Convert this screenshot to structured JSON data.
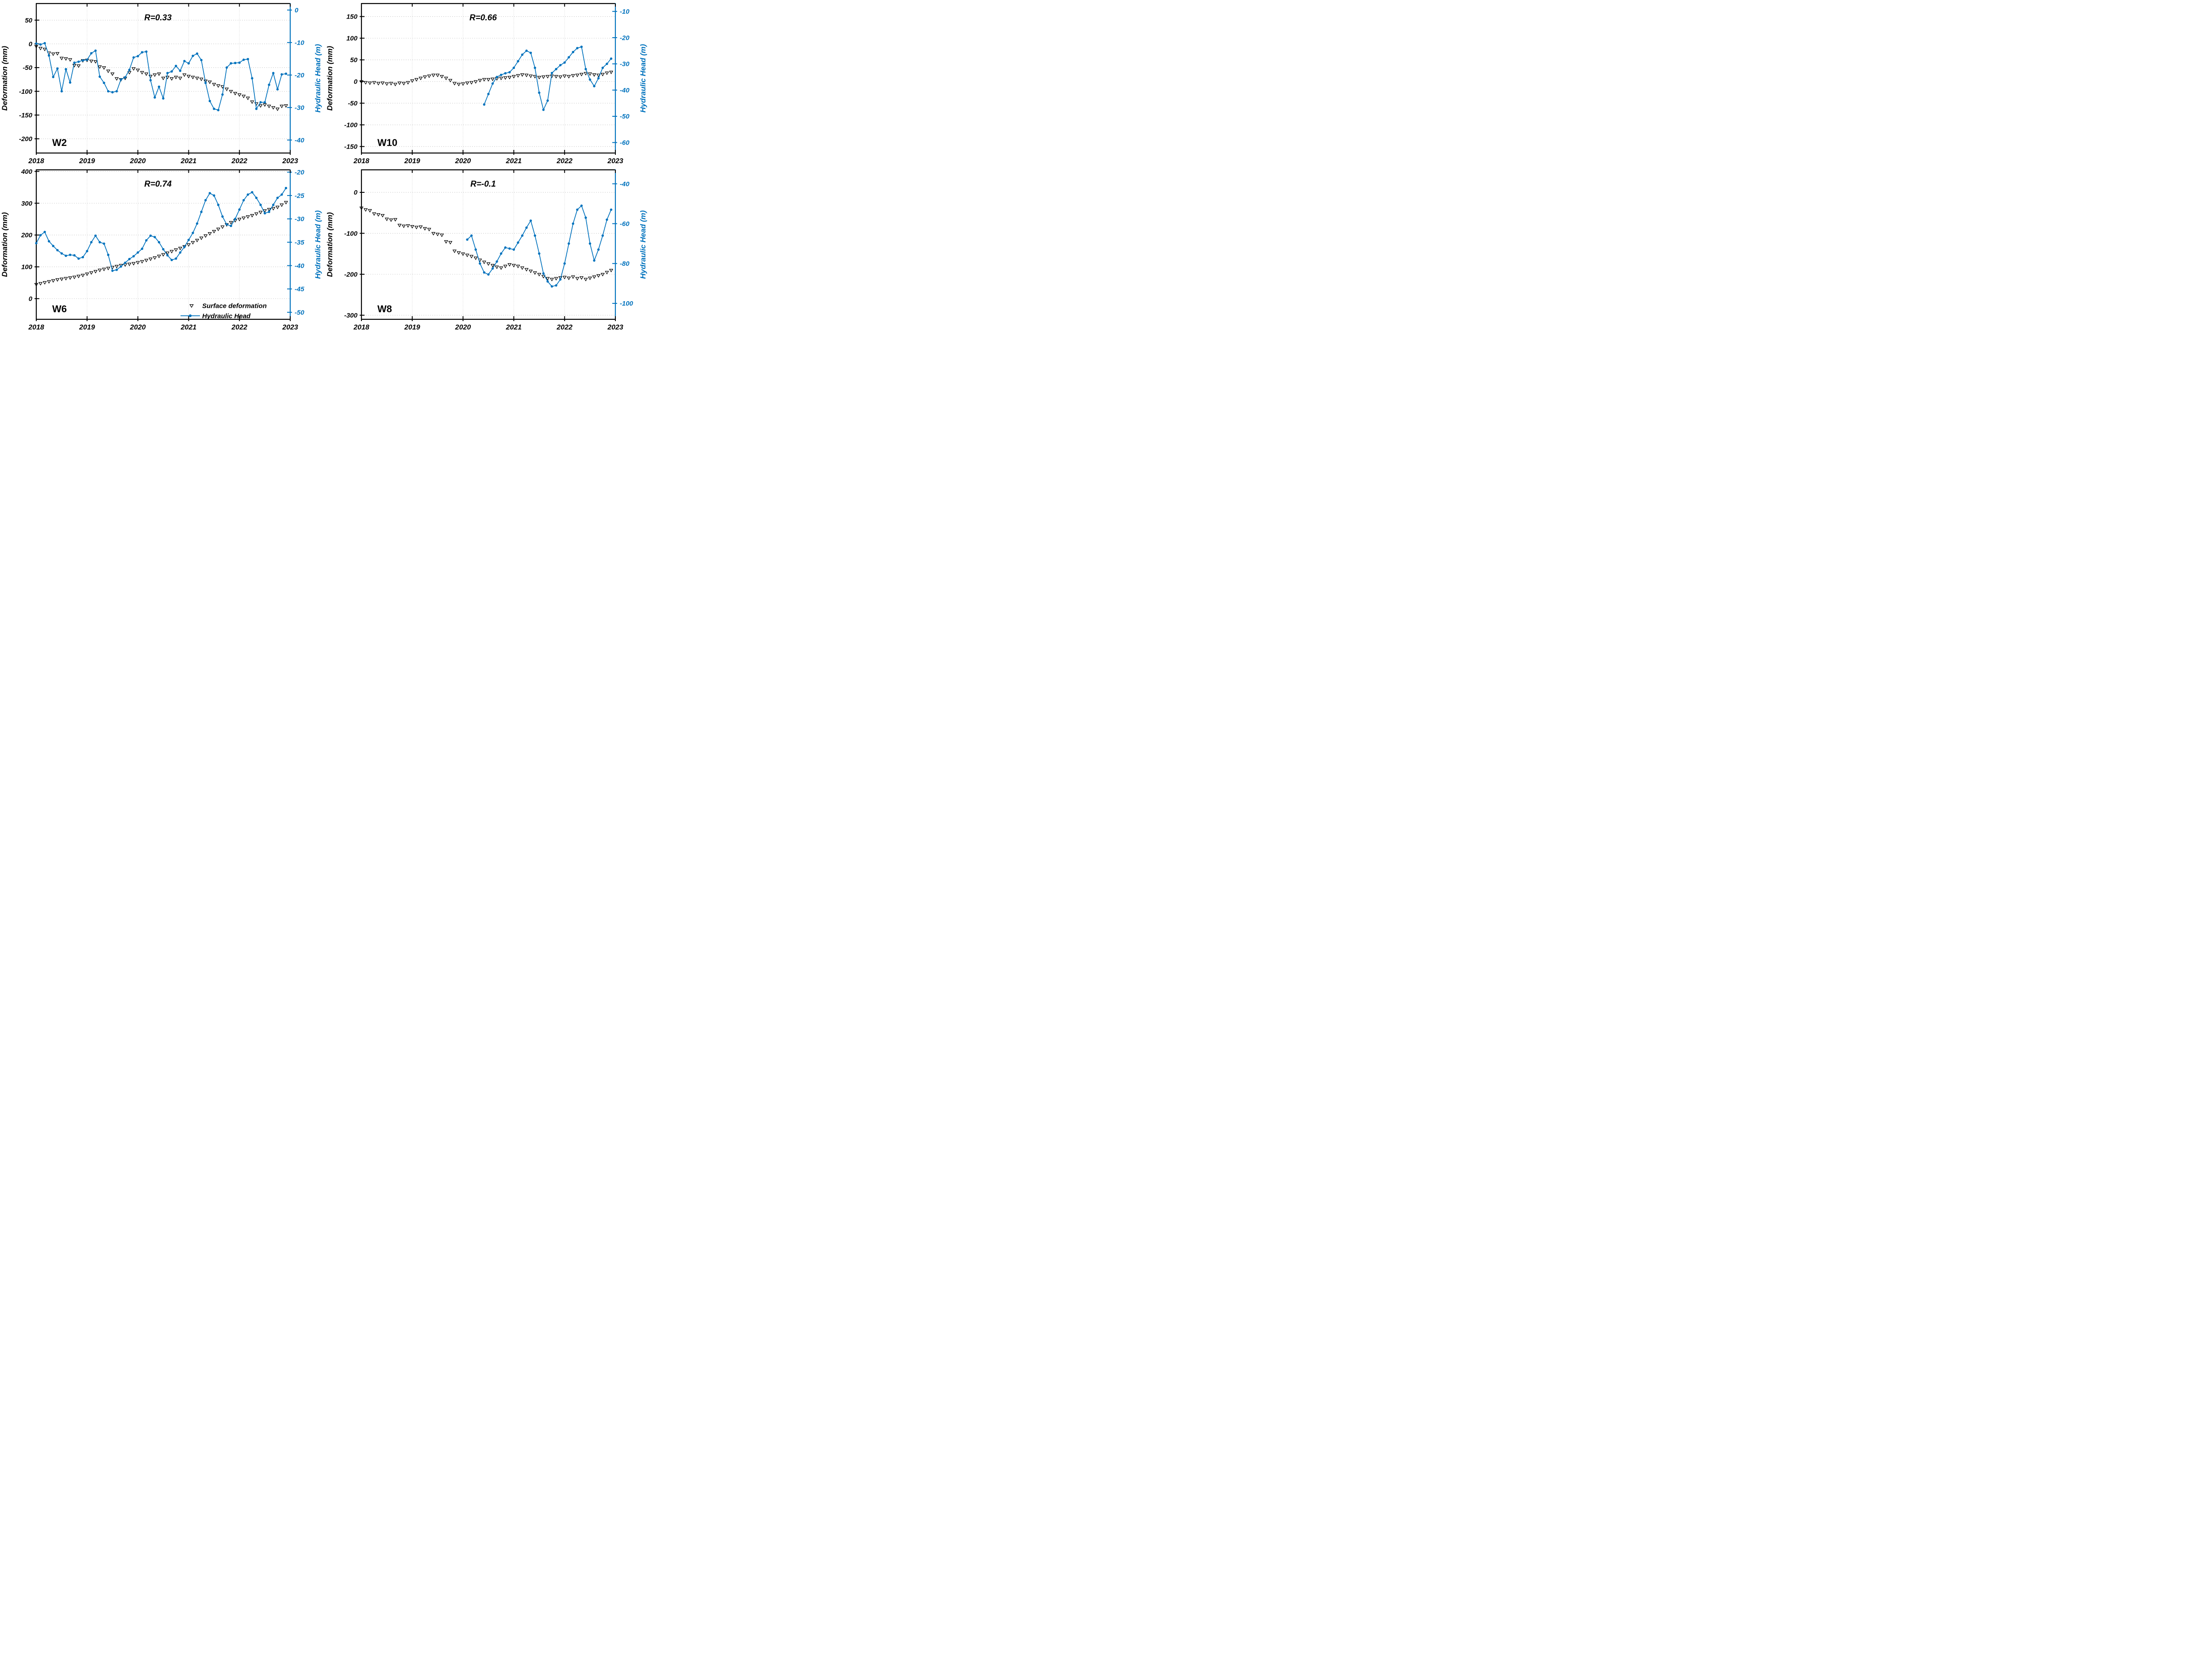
{
  "figure": {
    "background": "#ffffff",
    "accent_blue": "#0072BD",
    "axis_black": "#000000",
    "grid_color": "#cfcfcf",
    "x_axis": {
      "ticks": [
        2018,
        2019,
        2020,
        2021,
        2022,
        2023
      ],
      "xlim": [
        2018,
        2023
      ]
    },
    "legend": {
      "host_panel": "W6",
      "items": [
        {
          "label": "Surface deformation",
          "marker": "open-triangle-down",
          "color": "#000000"
        },
        {
          "label": "Hydraulic Head",
          "marker": "line-filled-circle",
          "color": "#0072BD"
        }
      ]
    }
  },
  "chart_data": [
    {
      "id": "W2",
      "type": "line",
      "well_label": "W2",
      "r_label": "R=0.33",
      "left_axis": {
        "label": "Deformation (mm)",
        "ylim": [
          -230,
          85
        ],
        "ticks": [
          50,
          0,
          -50,
          -100,
          -150,
          -200
        ],
        "color": "#000000"
      },
      "right_axis": {
        "label": "Hydraulic Head (m)",
        "ylim": [
          -44,
          2
        ],
        "ticks": [
          0,
          -10,
          -20,
          -30,
          -40
        ],
        "color": "#0072BD"
      },
      "series": [
        {
          "name": "Surface deformation",
          "axis": "left",
          "marker": "open-triangle-down",
          "line": false,
          "color": "#000000",
          "x_start": 2018.0,
          "x_step": 0.0833333,
          "values": [
            -5,
            -9,
            -11,
            -19,
            -21,
            -20,
            -30,
            -31,
            -33,
            -45,
            -46,
            -35,
            -34,
            -36,
            -37,
            -48,
            -50,
            -57,
            -63,
            -73,
            -75,
            -72,
            -60,
            -52,
            -55,
            -60,
            -63,
            -68,
            -65,
            -63,
            -72,
            -70,
            -73,
            -70,
            -72,
            -65,
            -68,
            -70,
            -72,
            -74,
            -78,
            -80,
            -85,
            -88,
            -90,
            -95,
            -100,
            -104,
            -107,
            -110,
            -114,
            -122,
            -126,
            -130,
            -128,
            -131,
            -134,
            -137,
            -131,
            -130
          ]
        },
        {
          "name": "Hydraulic Head",
          "axis": "right",
          "marker": "filled-circle",
          "line": true,
          "color": "#0072BD",
          "x_start": 2018.0,
          "x_step": 0.0833333,
          "values": [
            -10.3,
            -10.6,
            -10.2,
            -14.0,
            -20.6,
            -18.0,
            -25.0,
            -18.2,
            -22.3,
            -16.2,
            -15.9,
            -15.5,
            -15.3,
            -13.3,
            -12.5,
            -20.5,
            -22.4,
            -25.0,
            -25.3,
            -25.0,
            -21.4,
            -20.7,
            -18.4,
            -14.6,
            -14.2,
            -13.0,
            -12.8,
            -21.6,
            -26.9,
            -23.6,
            -27.2,
            -19.4,
            -18.9,
            -17.2,
            -18.7,
            -15.7,
            -16.4,
            -14.1,
            -13.4,
            -15.4,
            -22.4,
            -28.0,
            -30.4,
            -30.8,
            -26.0,
            -17.7,
            -16.4,
            -16.3,
            -16.2,
            -15.3,
            -15.1,
            -21.0,
            -30.4,
            -28.4,
            -28.4,
            -23.0,
            -19.4,
            -24.4,
            -19.8,
            -19.6
          ]
        }
      ]
    },
    {
      "id": "W10",
      "type": "line",
      "well_label": "W10",
      "r_label": "R=0.66",
      "left_axis": {
        "label": "Deformation (mm)",
        "ylim": [
          -165,
          180
        ],
        "ticks": [
          150,
          100,
          50,
          0,
          -50,
          -100,
          -150
        ],
        "color": "#000000"
      },
      "right_axis": {
        "label": "Hydraulic Head (m)",
        "ylim": [
          -64,
          -7
        ],
        "ticks": [
          -10,
          -20,
          -30,
          -40,
          -50,
          -60
        ],
        "color": "#0072BD"
      },
      "series": [
        {
          "name": "Surface deformation",
          "axis": "left",
          "marker": "open-triangle-down",
          "line": false,
          "color": "#000000",
          "x_start": 2018.0,
          "x_step": 0.0833333,
          "values": [
            0,
            -2,
            -3,
            -2,
            -4,
            -3,
            -5,
            -4,
            -6,
            -3,
            -4,
            -2,
            2,
            5,
            8,
            11,
            13,
            15,
            15,
            12,
            8,
            3,
            -4,
            -6,
            -5,
            -3,
            -2,
            0,
            3,
            5,
            5,
            6,
            7,
            8,
            9,
            10,
            12,
            14,
            16,
            15,
            13,
            12,
            10,
            11,
            12,
            13,
            12,
            11,
            13,
            12,
            14,
            15,
            17,
            19,
            18,
            16,
            15,
            17,
            20,
            22
          ]
        },
        {
          "name": "Hydraulic Head",
          "axis": "right",
          "marker": "filled-circle",
          "line": true,
          "color": "#0072BD",
          "x_start": 2020.4167,
          "x_step": 0.0833333,
          "values": [
            -45.5,
            -41.5,
            -37.5,
            -35.0,
            -34.2,
            -33.6,
            -33.2,
            -31.5,
            -29.0,
            -26.5,
            -25.0,
            -25.8,
            -31.5,
            -41.0,
            -47.5,
            -44.0,
            -33.5,
            -32.0,
            -30.5,
            -29.5,
            -27.5,
            -25.5,
            -24.0,
            -23.5,
            -32.0,
            -36.0,
            -38.5,
            -35.5,
            -31.5,
            -30.0,
            -28.0
          ]
        }
      ]
    },
    {
      "id": "W6",
      "type": "line",
      "well_label": "W6",
      "r_label": "R=0.74",
      "left_axis": {
        "label": "Deformation (mm)",
        "ylim": [
          -65,
          405
        ],
        "ticks": [
          400,
          300,
          200,
          100,
          0
        ],
        "color": "#000000"
      },
      "right_axis": {
        "label": "Hydraulic Head (m)",
        "ylim": [
          -51.5,
          -19.5
        ],
        "ticks": [
          -20,
          -25,
          -30,
          -35,
          -40,
          -45,
          -50
        ],
        "color": "#0072BD"
      },
      "series": [
        {
          "name": "Surface deformation",
          "axis": "left",
          "marker": "open-triangle-down",
          "line": false,
          "color": "#000000",
          "x_start": 2018.0,
          "x_step": 0.0833333,
          "values": [
            45,
            48,
            51,
            54,
            57,
            60,
            62,
            64,
            66,
            68,
            71,
            74,
            78,
            82,
            86,
            90,
            93,
            96,
            99,
            102,
            105,
            107,
            109,
            111,
            114,
            117,
            121,
            125,
            129,
            134,
            139,
            144,
            149,
            154,
            159,
            164,
            170,
            177,
            184,
            191,
            198,
            205,
            212,
            219,
            226,
            233,
            240,
            246,
            250,
            254,
            258,
            262,
            267,
            272,
            277,
            281,
            284,
            288,
            295,
            303
          ]
        },
        {
          "name": "Hydraulic Head",
          "axis": "right",
          "marker": "filled-circle",
          "line": true,
          "color": "#0072BD",
          "x_start": 2018.0,
          "x_step": 0.0833333,
          "values": [
            -35.2,
            -33.5,
            -32.8,
            -34.8,
            -35.8,
            -36.7,
            -37.4,
            -37.9,
            -37.7,
            -37.8,
            -38.5,
            -38.2,
            -36.9,
            -35.0,
            -33.6,
            -35.0,
            -35.3,
            -37.7,
            -41.1,
            -40.9,
            -40.2,
            -39.4,
            -38.6,
            -38.0,
            -37.2,
            -36.4,
            -34.6,
            -33.6,
            -33.9,
            -35.0,
            -36.5,
            -37.8,
            -38.8,
            -38.5,
            -37.2,
            -36.0,
            -34.5,
            -33.0,
            -31.0,
            -28.5,
            -26.0,
            -24.5,
            -25.0,
            -27.0,
            -29.5,
            -31.2,
            -31.5,
            -30.0,
            -28.0,
            -26.0,
            -24.8,
            -24.3,
            -25.5,
            -27.0,
            -28.8,
            -28.5,
            -27.0,
            -25.5,
            -24.8,
            -23.4
          ]
        }
      ]
    },
    {
      "id": "W8",
      "type": "line",
      "well_label": "W8",
      "r_label": "R=-0.1",
      "left_axis": {
        "label": "Deformation (mm)",
        "ylim": [
          -310,
          55
        ],
        "ticks": [
          0,
          -100,
          -200,
          -300
        ],
        "color": "#000000"
      },
      "right_axis": {
        "label": "Hydraulic Head (m)",
        "ylim": [
          -108,
          -33
        ],
        "ticks": [
          -40,
          -60,
          -80,
          -100
        ],
        "color": "#0072BD"
      },
      "series": [
        {
          "name": "Surface deformation",
          "axis": "left",
          "marker": "open-triangle-down",
          "line": false,
          "color": "#000000",
          "x_start": 2018.0,
          "x_step": 0.0833333,
          "values": [
            -38,
            -42,
            -44,
            -52,
            -54,
            -56,
            -65,
            -67,
            -66,
            -80,
            -82,
            -81,
            -83,
            -85,
            -84,
            -88,
            -90,
            -100,
            -102,
            -104,
            -120,
            -122,
            -143,
            -147,
            -150,
            -153,
            -156,
            -160,
            -165,
            -170,
            -174,
            -178,
            -182,
            -184,
            -180,
            -176,
            -178,
            -180,
            -184,
            -188,
            -192,
            -196,
            -200,
            -205,
            -210,
            -212,
            -210,
            -208,
            -207,
            -209,
            -206,
            -210,
            -208,
            -212,
            -209,
            -206,
            -203,
            -200,
            -195,
            -190
          ]
        },
        {
          "name": "Hydraulic Head",
          "axis": "right",
          "marker": "filled-circle",
          "line": true,
          "color": "#0072BD",
          "x_start": 2020.0833,
          "x_step": 0.0833333,
          "values": [
            -68,
            -66,
            -73,
            -80,
            -84.5,
            -85.5,
            -82.5,
            -79,
            -75,
            -72,
            -72.5,
            -73,
            -69.5,
            -66,
            -62,
            -58.5,
            -66,
            -75,
            -85,
            -89,
            -91.5,
            -91,
            -88,
            -80,
            -70,
            -60,
            -53,
            -51,
            -57,
            -70,
            -78.5,
            -73,
            -66,
            -58,
            -53
          ]
        }
      ]
    }
  ]
}
